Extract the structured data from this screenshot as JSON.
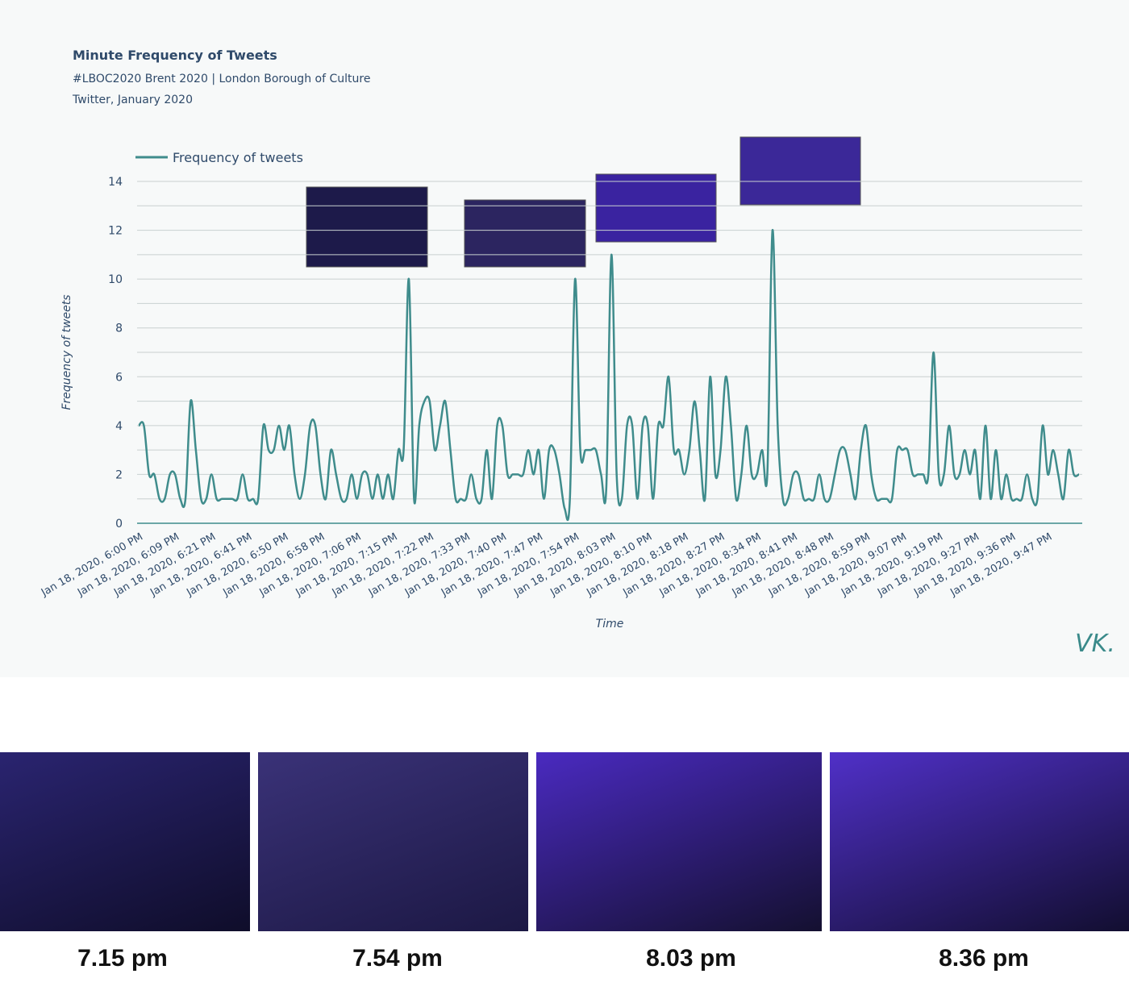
{
  "chart_data": {
    "type": "line",
    "title": "Minute Frequency of Tweets",
    "subtitle": "#LBOC2020 Brent 2020  |  London Borough of Culture",
    "source": "Twitter, January 2020",
    "x_label": "Time",
    "y_label": "Frequency of tweets",
    "ylim": [
      0,
      14
    ],
    "yticks": [
      0,
      2,
      4,
      6,
      8,
      10,
      12,
      14
    ],
    "grid": true,
    "legend": "top-left",
    "categories": [
      "Jan 18, 2020, 6:00 PM",
      null,
      null,
      null,
      null,
      null,
      null,
      "Jan 18, 2020, 6:09 PM",
      null,
      null,
      null,
      null,
      null,
      null,
      "Jan 18, 2020, 6:21 PM",
      null,
      null,
      null,
      null,
      null,
      null,
      "Jan 18, 2020, 6:41 PM",
      null,
      null,
      null,
      null,
      null,
      null,
      "Jan 18, 2020, 6:50 PM",
      null,
      null,
      null,
      null,
      null,
      null,
      "Jan 18, 2020, 6:58 PM",
      null,
      null,
      null,
      null,
      null,
      null,
      "Jan 18, 2020, 7:06 PM",
      null,
      null,
      null,
      null,
      null,
      null,
      "Jan 18, 2020, 7:15 PM",
      null,
      null,
      null,
      null,
      null,
      null,
      "Jan 18, 2020, 7:22 PM",
      null,
      null,
      null,
      null,
      null,
      null,
      "Jan 18, 2020, 7:33 PM",
      null,
      null,
      null,
      null,
      null,
      null,
      "Jan 18, 2020, 7:40 PM",
      null,
      null,
      null,
      null,
      null,
      null,
      "Jan 18, 2020, 7:47 PM",
      null,
      null,
      null,
      null,
      null,
      null,
      "Jan 18, 2020, 7:54 PM",
      null,
      null,
      null,
      null,
      null,
      null,
      "Jan 18, 2020, 8:03 PM",
      null,
      null,
      null,
      null,
      null,
      null,
      "Jan 18, 2020, 8:10 PM",
      null,
      null,
      null,
      null,
      null,
      null,
      "Jan 18, 2020, 8:18 PM",
      null,
      null,
      null,
      null,
      null,
      null,
      "Jan 18, 2020, 8:27 PM",
      null,
      null,
      null,
      null,
      null,
      null,
      "Jan 18, 2020, 8:34 PM",
      null,
      null,
      null,
      null,
      null,
      null,
      "Jan 18, 2020, 8:41 PM",
      null,
      null,
      null,
      null,
      null,
      null,
      "Jan 18, 2020, 8:48 PM",
      null,
      null,
      null,
      null,
      null,
      null,
      "Jan 18, 2020, 8:59 PM",
      null,
      null,
      null,
      null,
      null,
      null,
      "Jan 18, 2020, 9:07 PM",
      null,
      null,
      null,
      null,
      null,
      null,
      "Jan 18, 2020, 9:19 PM",
      null,
      null,
      null,
      null,
      null,
      null,
      "Jan 18, 2020, 9:27 PM",
      null,
      null,
      null,
      null,
      null,
      null,
      "Jan 18, 2020, 9:36 PM",
      null,
      null,
      null,
      null,
      null,
      null,
      "Jan 18, 2020, 9:47 PM",
      null,
      null,
      null,
      null,
      null,
      null
    ],
    "series": [
      {
        "name": "Frequency of tweets",
        "color": "#3f8c8c",
        "values": [
          4,
          4,
          2,
          2,
          1,
          1,
          2,
          2,
          1,
          1,
          5,
          3,
          1,
          1,
          2,
          1,
          1,
          1,
          1,
          1,
          2,
          1,
          1,
          1,
          4,
          3,
          3,
          4,
          3,
          4,
          2,
          1,
          2,
          4,
          4,
          2,
          1,
          3,
          2,
          1,
          1,
          2,
          1,
          2,
          2,
          1,
          2,
          1,
          2,
          1,
          3,
          3,
          10,
          1,
          4,
          5,
          5,
          3,
          4,
          5,
          3,
          1,
          1,
          1,
          2,
          1,
          1,
          3,
          1,
          4,
          4,
          2,
          2,
          2,
          2,
          3,
          2,
          3,
          1,
          3,
          3,
          2,
          0.6,
          1,
          10,
          3,
          3,
          3,
          3,
          2,
          1.4,
          11,
          2,
          1,
          4,
          4,
          1,
          4,
          4,
          1,
          4,
          4,
          6,
          3,
          3,
          2,
          3,
          5,
          3,
          1,
          6,
          2,
          3,
          6,
          4,
          1,
          2,
          4,
          2,
          2,
          3,
          2,
          12,
          4,
          1,
          1,
          2,
          2,
          1,
          1,
          1,
          2,
          1,
          1,
          2,
          3,
          3,
          2,
          1,
          3,
          4,
          2,
          1,
          1,
          1,
          1,
          3,
          3,
          3,
          2,
          2,
          2,
          2,
          7,
          2,
          2,
          4,
          2,
          2,
          3,
          2,
          3,
          1,
          4,
          1,
          3,
          1,
          2,
          1,
          1,
          1,
          2,
          1,
          1,
          4,
          2,
          3,
          2,
          1,
          3,
          2,
          2
        ]
      }
    ]
  },
  "captions": [
    "7.15 pm",
    "7.54 pm",
    "8.03 pm",
    "8.36 pm"
  ],
  "signature": "VK."
}
